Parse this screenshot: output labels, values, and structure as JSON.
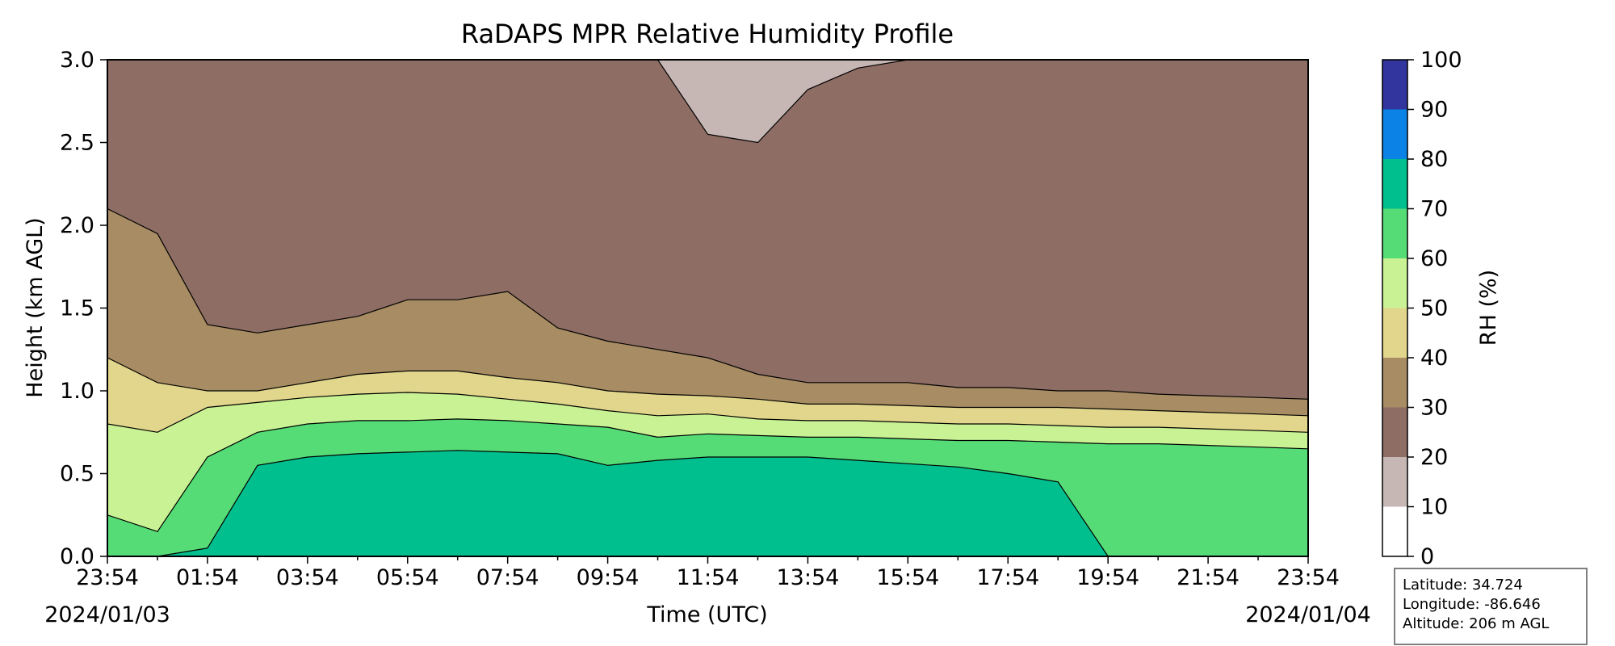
{
  "chart_data": {
    "type": "heatmap",
    "title": "RaDAPS MPR Relative Humidity Profile",
    "xlabel": "Time (UTC)",
    "ylabel": "Height (km AGL)",
    "x_ticks": [
      "23:54",
      "01:54",
      "03:54",
      "05:54",
      "07:54",
      "09:54",
      "11:54",
      "13:54",
      "15:54",
      "17:54",
      "19:54",
      "21:54",
      "23:54"
    ],
    "x_range_hours": [
      0,
      24
    ],
    "start_date": "2024/01/03",
    "end_date": "2024/01/04",
    "y_ticks": [
      "0.0",
      "0.5",
      "1.0",
      "1.5",
      "2.0",
      "2.5",
      "3.0"
    ],
    "ylim": [
      0,
      3.0
    ],
    "colorbar": {
      "label": "RH (%)",
      "levels": [
        0,
        10,
        20,
        30,
        40,
        50,
        60,
        70,
        80,
        90,
        100
      ],
      "tick_labels": [
        "0",
        "10",
        "20",
        "30",
        "40",
        "50",
        "60",
        "70",
        "80",
        "90",
        "100"
      ],
      "colors": [
        "#ffffff",
        "#c6b7b5",
        "#8d6d64",
        "#a88c63",
        "#e1d68c",
        "#c9f294",
        "#55dc76",
        "#00bf8f",
        "#0b83e6",
        "#33359e"
      ]
    },
    "contours_km": {
      "times_h": [
        0,
        1,
        2,
        3,
        4,
        5,
        6,
        7,
        8,
        9,
        10,
        11,
        12,
        13,
        14,
        15,
        16,
        17,
        18,
        19,
        20,
        21,
        22,
        23,
        24
      ],
      "rh_20": [
        null,
        null,
        null,
        null,
        null,
        null,
        null,
        null,
        null,
        null,
        null,
        3.0,
        2.55,
        2.5,
        2.82,
        2.95,
        3.0,
        null,
        null,
        null,
        null,
        null,
        null,
        null,
        null
      ],
      "rh_30": [
        2.1,
        1.95,
        1.4,
        1.35,
        1.4,
        1.45,
        1.55,
        1.55,
        1.6,
        1.38,
        1.3,
        1.25,
        1.2,
        1.1,
        1.05,
        1.05,
        1.05,
        1.02,
        1.02,
        1.0,
        1.0,
        0.98,
        0.97,
        0.96,
        0.95
      ],
      "rh_40": [
        1.2,
        1.05,
        1.0,
        1.0,
        1.05,
        1.1,
        1.12,
        1.12,
        1.08,
        1.05,
        1.0,
        0.98,
        0.97,
        0.95,
        0.92,
        0.92,
        0.91,
        0.9,
        0.9,
        0.9,
        0.89,
        0.88,
        0.87,
        0.86,
        0.85
      ],
      "rh_50": [
        0.8,
        0.75,
        0.9,
        0.93,
        0.96,
        0.98,
        0.99,
        0.98,
        0.95,
        0.92,
        0.88,
        0.85,
        0.86,
        0.83,
        0.82,
        0.82,
        0.81,
        0.8,
        0.8,
        0.79,
        0.78,
        0.78,
        0.77,
        0.76,
        0.75
      ],
      "rh_60": [
        0.25,
        0.15,
        0.6,
        0.75,
        0.8,
        0.82,
        0.82,
        0.83,
        0.82,
        0.8,
        0.78,
        0.72,
        0.74,
        0.73,
        0.72,
        0.72,
        0.71,
        0.7,
        0.7,
        0.69,
        0.68,
        0.68,
        0.67,
        0.66,
        0.65
      ],
      "rh_70": [
        0,
        0,
        0.05,
        0.55,
        0.6,
        0.62,
        0.63,
        0.64,
        0.63,
        0.62,
        0.55,
        0.58,
        0.6,
        0.6,
        0.6,
        0.58,
        0.56,
        0.54,
        0.5,
        0.45,
        0.0,
        0.0,
        0.0,
        0.0,
        0.0
      ]
    }
  },
  "info": {
    "latitude": "Latitude: 34.724",
    "longitude": "Longitude: -86.646",
    "altitude": "Altitude: 206 m AGL"
  }
}
